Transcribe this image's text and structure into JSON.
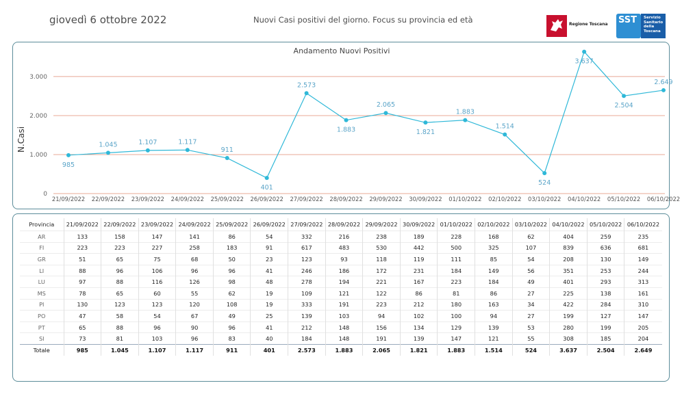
{
  "header": {
    "date": "giovedì 6 ottobre 2022",
    "subtitle": "Nuovi Casi positivi del giorno. Focus su provincia ed età",
    "logo_rt": "Regione Toscana",
    "logo_sst_mark": "SST",
    "logo_sst_text": "Servizio\nSanitario\ndella\nToscana"
  },
  "colors": {
    "line": "#2fb8d8",
    "grid": "#e8a895",
    "panel_border": "#5b8c99",
    "label": "#5aa4c8"
  },
  "chart_data": {
    "type": "line",
    "title": "Andamento Nuovi Positivi",
    "ylabel": "N.Casi",
    "xlabel": "",
    "ylim": [
      0,
      3700
    ],
    "yticks": [
      0,
      1000,
      2000,
      3000
    ],
    "ytick_labels": [
      "0",
      "1.000",
      "2.000",
      "3.000"
    ],
    "categories": [
      "21/09/2022",
      "22/09/2022",
      "23/09/2022",
      "24/09/2022",
      "25/09/2022",
      "26/09/2022",
      "27/09/2022",
      "28/09/2022",
      "29/09/2022",
      "30/09/2022",
      "01/10/2022",
      "02/10/2022",
      "03/10/2022",
      "04/10/2022",
      "05/10/2022",
      "06/10/2022"
    ],
    "values": [
      985,
      1045,
      1107,
      1117,
      911,
      401,
      2573,
      1883,
      2065,
      1821,
      1883,
      1514,
      524,
      3637,
      2504,
      2649
    ],
    "value_labels": [
      "985",
      "1.045",
      "1.107",
      "1.117",
      "911",
      "401",
      "2.573",
      "1.883",
      "2.065",
      "1.821",
      "1.883",
      "1.514",
      "524",
      "3.637",
      "2.504",
      "2.649"
    ],
    "label_positions": [
      "below",
      "above",
      "above",
      "above",
      "above",
      "below",
      "above",
      "below",
      "above",
      "below",
      "above",
      "above",
      "below",
      "below",
      "below",
      "above"
    ],
    "grid": true
  },
  "table": {
    "header": [
      "Provincia",
      "21/09/2022",
      "22/09/2022",
      "23/09/2022",
      "24/09/2022",
      "25/09/2022",
      "26/09/2022",
      "27/09/2022",
      "28/09/2022",
      "29/09/2022",
      "30/09/2022",
      "01/10/2022",
      "02/10/2022",
      "03/10/2022",
      "04/10/2022",
      "05/10/2022",
      "06/10/2022"
    ],
    "rows": [
      [
        "AR",
        "133",
        "158",
        "147",
        "141",
        "86",
        "54",
        "332",
        "216",
        "238",
        "189",
        "228",
        "168",
        "62",
        "404",
        "259",
        "235"
      ],
      [
        "FI",
        "223",
        "223",
        "227",
        "258",
        "183",
        "91",
        "617",
        "483",
        "530",
        "442",
        "500",
        "325",
        "107",
        "839",
        "636",
        "681"
      ],
      [
        "GR",
        "51",
        "65",
        "75",
        "68",
        "50",
        "23",
        "123",
        "93",
        "118",
        "119",
        "111",
        "85",
        "54",
        "208",
        "130",
        "149"
      ],
      [
        "LI",
        "88",
        "96",
        "106",
        "96",
        "96",
        "41",
        "246",
        "186",
        "172",
        "231",
        "184",
        "149",
        "56",
        "351",
        "253",
        "244"
      ],
      [
        "LU",
        "97",
        "88",
        "116",
        "126",
        "98",
        "48",
        "278",
        "194",
        "221",
        "167",
        "223",
        "184",
        "49",
        "401",
        "293",
        "313"
      ],
      [
        "MS",
        "78",
        "65",
        "60",
        "55",
        "62",
        "19",
        "109",
        "121",
        "122",
        "86",
        "81",
        "86",
        "27",
        "225",
        "138",
        "161"
      ],
      [
        "PI",
        "130",
        "123",
        "123",
        "120",
        "108",
        "19",
        "333",
        "191",
        "223",
        "212",
        "180",
        "163",
        "34",
        "422",
        "284",
        "310"
      ],
      [
        "PO",
        "47",
        "58",
        "54",
        "67",
        "49",
        "25",
        "139",
        "103",
        "94",
        "102",
        "100",
        "94",
        "27",
        "199",
        "127",
        "147"
      ],
      [
        "PT",
        "65",
        "88",
        "96",
        "90",
        "96",
        "41",
        "212",
        "148",
        "156",
        "134",
        "129",
        "139",
        "53",
        "280",
        "199",
        "205"
      ],
      [
        "SI",
        "73",
        "81",
        "103",
        "96",
        "83",
        "40",
        "184",
        "148",
        "191",
        "139",
        "147",
        "121",
        "55",
        "308",
        "185",
        "204"
      ]
    ],
    "total": [
      "Totale",
      "985",
      "1.045",
      "1.107",
      "1.117",
      "911",
      "401",
      "2.573",
      "1.883",
      "2.065",
      "1.821",
      "1.883",
      "1.514",
      "524",
      "3.637",
      "2.504",
      "2.649"
    ]
  }
}
